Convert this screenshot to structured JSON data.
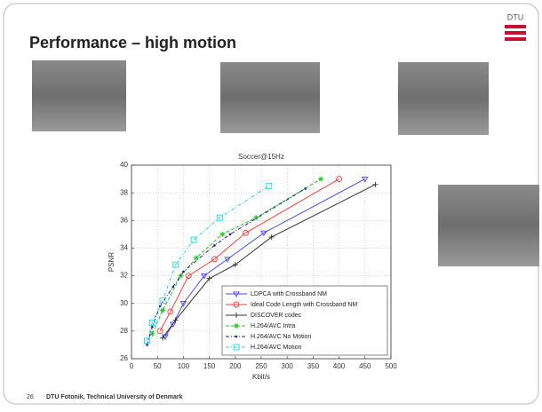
{
  "slide": {
    "title": "Performance – high motion",
    "logo": "DTU",
    "page_number": "26",
    "footer": "DTU Fotonik, Technical University of Denmark"
  },
  "chart_data": {
    "type": "line",
    "title": "Soccer@15Hz",
    "x_label": "Kbit/s",
    "y_label": "PSNR",
    "xlim": [
      0,
      500
    ],
    "xticks": [
      0,
      50,
      100,
      150,
      200,
      250,
      300,
      350,
      400,
      450,
      500
    ],
    "ylim": [
      26,
      40
    ],
    "yticks": [
      26,
      28,
      30,
      32,
      34,
      36,
      38,
      40
    ],
    "grid": true,
    "legend": "lower right",
    "series": [
      {
        "name": "LDPCA with Crossband NM",
        "color": "#4848ff",
        "marker": "v",
        "dash": "solid",
        "x": [
          65,
          80,
          100,
          140,
          185,
          255,
          450
        ],
        "values": [
          27.6,
          28.5,
          30.0,
          32.0,
          33.2,
          35.1,
          39.0
        ]
      },
      {
        "name": "Ideal Code Length with Crossband NM",
        "color": "#ff3a3a",
        "marker": "o",
        "dash": "solid",
        "x": [
          55,
          75,
          110,
          160,
          220,
          400
        ],
        "values": [
          28.0,
          29.4,
          32.0,
          33.2,
          35.1,
          39.0
        ]
      },
      {
        "name": "DISCOVER codec",
        "color": "#333333",
        "marker": "+",
        "dash": "solid",
        "x": [
          60,
          85,
          150,
          200,
          270,
          470
        ],
        "values": [
          27.5,
          28.8,
          31.8,
          32.8,
          34.8,
          38.6
        ]
      },
      {
        "name": "H.264/AVC Intra",
        "color": "#22c822",
        "marker": "*",
        "dash": "dashed",
        "x": [
          40,
          60,
          95,
          125,
          175,
          240,
          365
        ],
        "values": [
          27.8,
          29.5,
          32.0,
          33.3,
          35.0,
          36.2,
          39.0
        ]
      },
      {
        "name": "H.264/AVC No Motion",
        "color": "#1a1aa0",
        "marker": ".",
        "dash": "dashdot",
        "x": [
          30,
          40,
          55,
          80,
          100,
          160,
          190,
          335
        ],
        "values": [
          27.0,
          28.3,
          29.8,
          31.2,
          32.3,
          34.2,
          35.0,
          38.3
        ]
      },
      {
        "name": "H.264/AVC Motion",
        "color": "#22d8e0",
        "marker": "s",
        "dash": "dashdot",
        "x": [
          30,
          40,
          60,
          85,
          120,
          170,
          265
        ],
        "values": [
          27.3,
          28.6,
          30.2,
          32.8,
          34.6,
          36.2,
          38.5
        ]
      }
    ]
  }
}
